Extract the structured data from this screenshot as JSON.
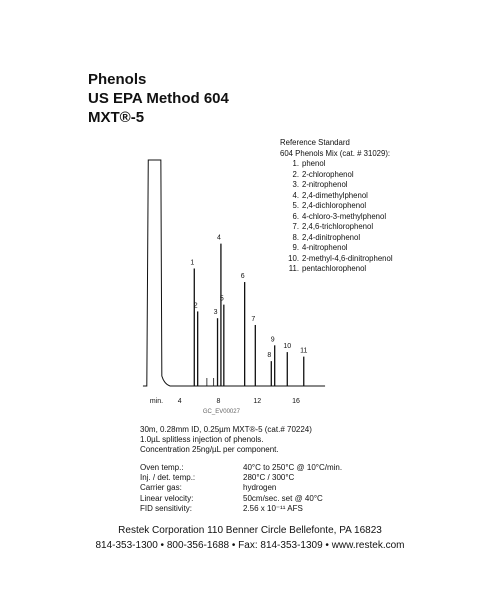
{
  "titles": [
    "Phenols",
    "US EPA Method 604",
    "MXT®-5"
  ],
  "reference": {
    "heading1": "Reference Standard",
    "heading2": "604 Phenols Mix (cat. # 31029):",
    "compounds": [
      {
        "num": "1.",
        "name": "phenol"
      },
      {
        "num": "2.",
        "name": "2-chlorophenol"
      },
      {
        "num": "3.",
        "name": "2-nitrophenol"
      },
      {
        "num": "4.",
        "name": "2,4-dimethylphenol"
      },
      {
        "num": "5.",
        "name": "2,4-dichlorophenol"
      },
      {
        "num": "6.",
        "name": "4-chloro-3-methylphenol"
      },
      {
        "num": "7.",
        "name": "2,4,6-trichlorophenol"
      },
      {
        "num": "8.",
        "name": "2,4-dinitrophenol"
      },
      {
        "num": "9.",
        "name": "4-nitrophenol"
      },
      {
        "num": "10.",
        "name": "2-methyl-4,6-dinitrophenol"
      },
      {
        "num": "11.",
        "name": "pentachlorophenol"
      }
    ]
  },
  "chart_data": {
    "type": "line",
    "xlabel": "min.",
    "xlim": [
      0,
      19
    ],
    "ylim": [
      0,
      100
    ],
    "x_ticks": [
      "4",
      "8",
      "12",
      "16"
    ],
    "x_tick_values": [
      4,
      8,
      12,
      16
    ],
    "code": "GC_EV00027",
    "peaks": [
      {
        "label": "1",
        "rt": 5.5,
        "height": 52
      },
      {
        "label": "2",
        "rt": 5.85,
        "height": 33
      },
      {
        "label": "3",
        "rt": 7.9,
        "height": 30
      },
      {
        "label": "4",
        "rt": 8.25,
        "height": 63
      },
      {
        "label": "5",
        "rt": 8.55,
        "height": 36
      },
      {
        "label": "6",
        "rt": 10.7,
        "height": 46
      },
      {
        "label": "7",
        "rt": 11.8,
        "height": 27
      },
      {
        "label": "8",
        "rt": 13.45,
        "height": 11
      },
      {
        "label": "9",
        "rt": 13.8,
        "height": 18
      },
      {
        "label": "10",
        "rt": 15.1,
        "height": 15
      },
      {
        "label": "11",
        "rt": 16.8,
        "height": 13
      }
    ]
  },
  "method": {
    "line1": "30m, 0.28mm ID, 0.25µm MXT®-5 (cat.# 70224)",
    "line2": "1.0µL splitless injection of phenols.",
    "line3": "Concentration 25ng/µL per component."
  },
  "conditions": [
    {
      "label": "Oven temp.:",
      "value": "40°C to 250°C @ 10°C/min."
    },
    {
      "label": "Inj. / det. temp.:",
      "value": "280°C / 300°C"
    },
    {
      "label": "Carrier gas:",
      "value": "hydrogen"
    },
    {
      "label": "Linear velocity:",
      "value": "50cm/sec. set @ 40°C"
    },
    {
      "label": "FID sensitivity:",
      "value": "2.56 x 10⁻¹¹ AFS"
    }
  ],
  "footer": {
    "line1": "Restek Corporation   110 Benner Circle   Bellefonte, PA 16823",
    "line2": "814-353-1300  •  800-356-1688  •  Fax: 814-353-1309  •  www.restek.com"
  }
}
